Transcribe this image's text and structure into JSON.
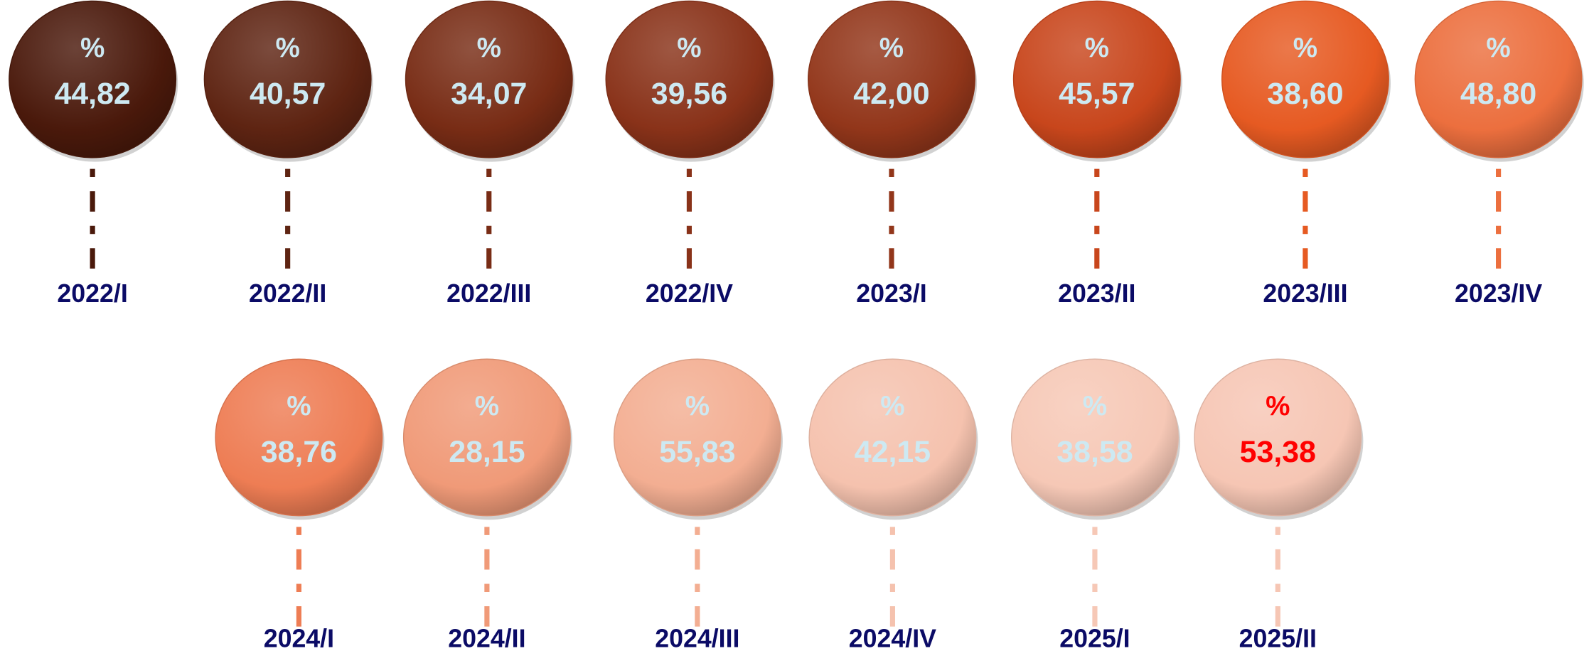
{
  "unit": "%",
  "rows": [
    [
      {
        "period": "2022/I",
        "value": "44,82",
        "color": "#4a190b",
        "text_color": "#cde9f2"
      },
      {
        "period": "2022/II",
        "value": "40,57",
        "color": "#5e2412",
        "text_color": "#cde9f2"
      },
      {
        "period": "2022/III",
        "value": "34,07",
        "color": "#782c15",
        "text_color": "#cde9f2"
      },
      {
        "period": "2022/IV",
        "value": "39,56",
        "color": "#893219",
        "text_color": "#cde9f2"
      },
      {
        "period": "2023/I",
        "value": "42,00",
        "color": "#92361a",
        "text_color": "#cde9f2"
      },
      {
        "period": "2023/II",
        "value": "45,57",
        "color": "#c8461c",
        "text_color": "#cde9f2"
      },
      {
        "period": "2023/III",
        "value": "38,60",
        "color": "#e65a22",
        "text_color": "#cde9f2"
      },
      {
        "period": "2023/IV",
        "value": "48,80",
        "color": "#ec6f3e",
        "text_color": "#cde9f2"
      }
    ],
    [
      {
        "period": "2024/I",
        "value": "38,76",
        "color": "#ee7d54",
        "text_color": "#cde9f2"
      },
      {
        "period": "2024/II",
        "value": "28,15",
        "color": "#f09a78",
        "text_color": "#cde9f2"
      },
      {
        "period": "2024/III",
        "value": "55,83",
        "color": "#f3ae92",
        "text_color": "#cde9f2"
      },
      {
        "period": "2024/IV",
        "value": "42,15",
        "color": "#f5c2ae",
        "text_color": "#cde9f2"
      },
      {
        "period": "2025/I",
        "value": "38,58",
        "color": "#f6c8b6",
        "text_color": "#cde9f2"
      },
      {
        "period": "2025/II",
        "value": "53,38",
        "color": "#f6c6b4",
        "text_color": "#ff0000"
      }
    ]
  ]
}
